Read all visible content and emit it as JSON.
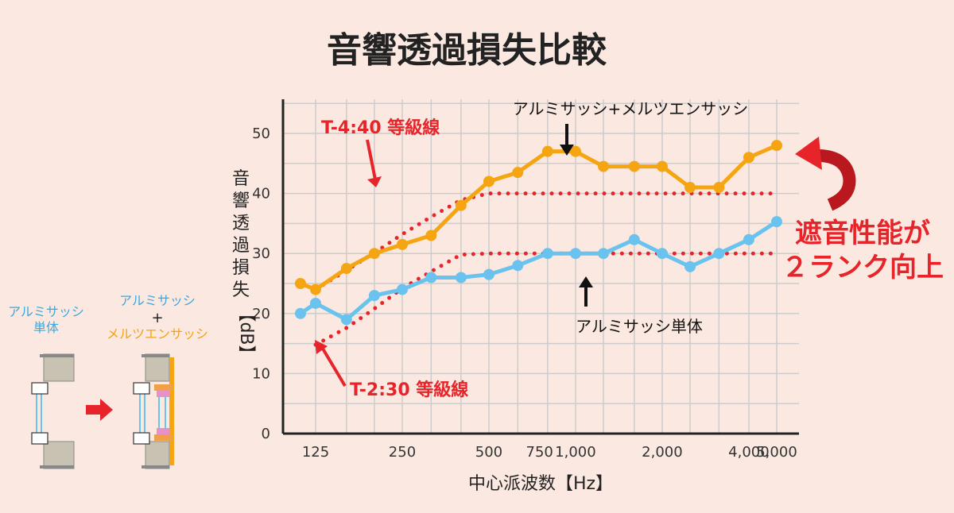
{
  "chart_data": {
    "type": "line",
    "title": "音響透過損失比較",
    "xlabel": "中心派波数【Hz】",
    "ylabel_chars": [
      "音",
      "響",
      "透",
      "過",
      "損",
      "失"
    ],
    "ylabel_unit": "【dB】",
    "ylim": [
      0,
      55
    ],
    "yticks": [
      0,
      10,
      20,
      30,
      40,
      50
    ],
    "xtick_labels": [
      {
        "f": 125,
        "label": "125"
      },
      {
        "f": 250,
        "label": "250"
      },
      {
        "f": 500,
        "label": "500"
      },
      {
        "f": 750,
        "label": "750"
      },
      {
        "f": 1000,
        "label": "1,000"
      },
      {
        "f": 2000,
        "label": "2,000"
      },
      {
        "f": 4000,
        "label": "4,000"
      },
      {
        "f": 5000,
        "label": "5,000"
      }
    ],
    "series": [
      {
        "name": "アルミサッシ+メルツエンサッシ",
        "color": "#f5a511",
        "points": [
          [
            100,
            25
          ],
          [
            125,
            24
          ],
          [
            160,
            27.5
          ],
          [
            200,
            30
          ],
          [
            250,
            31.5
          ],
          [
            315,
            33
          ],
          [
            400,
            38
          ],
          [
            500,
            42
          ],
          [
            630,
            43.5
          ],
          [
            800,
            47
          ],
          [
            1000,
            47
          ],
          [
            1250,
            44.5
          ],
          [
            1600,
            44.5
          ],
          [
            2000,
            44.5
          ],
          [
            2500,
            41
          ],
          [
            3150,
            41
          ],
          [
            4000,
            46
          ],
          [
            5000,
            48
          ]
        ]
      },
      {
        "name": "アルミサッシ単体",
        "color": "#6ac3ef",
        "points": [
          [
            100,
            20
          ],
          [
            125,
            21.7
          ],
          [
            160,
            19
          ],
          [
            200,
            23
          ],
          [
            250,
            24
          ],
          [
            315,
            26
          ],
          [
            400,
            26
          ],
          [
            500,
            26.5
          ],
          [
            630,
            28
          ],
          [
            800,
            30
          ],
          [
            1000,
            30
          ],
          [
            1250,
            30
          ],
          [
            1600,
            32.3
          ],
          [
            2000,
            30
          ],
          [
            2500,
            27.8
          ],
          [
            3150,
            30
          ],
          [
            4000,
            32.3
          ],
          [
            5000,
            35.3
          ]
        ]
      }
    ],
    "grade_lines": [
      {
        "name": "T-4:40 等級線",
        "color": "#e8242b",
        "points": [
          [
            125,
            24
          ],
          [
            160,
            27.2
          ],
          [
            200,
            30.1
          ],
          [
            250,
            33.2
          ],
          [
            315,
            36.1
          ],
          [
            400,
            38.9
          ],
          [
            500,
            40
          ],
          [
            5000,
            40
          ]
        ]
      },
      {
        "name": "T-2:30 等級線",
        "color": "#e8242b",
        "points": [
          [
            125,
            14.8
          ],
          [
            160,
            17.6
          ],
          [
            200,
            20.8
          ],
          [
            250,
            24.2
          ],
          [
            315,
            27
          ],
          [
            400,
            29.8
          ],
          [
            500,
            30
          ],
          [
            5000,
            30
          ]
        ]
      }
    ],
    "annotations": {
      "t4": "T-4:40 等級線",
      "t2": "T-2:30 等級線",
      "combo": "アルミサッシ+メルツエンサッシ",
      "single": "アルミサッシ単体"
    },
    "claim_line1": "遮音性能が",
    "claim_line2": "２ランク向上"
  },
  "sidebar": {
    "left_line1": "アルミサッシ",
    "left_line2": "単体",
    "right_line1": "アルミサッシ",
    "right_plus": "+",
    "right_line2": "メルツエンサッシ"
  },
  "colors": {
    "background": "#fbe9e1",
    "orange": "#f5a511",
    "blue": "#6ac3ef",
    "red": "#e8242b",
    "grid": "#cccccc"
  }
}
